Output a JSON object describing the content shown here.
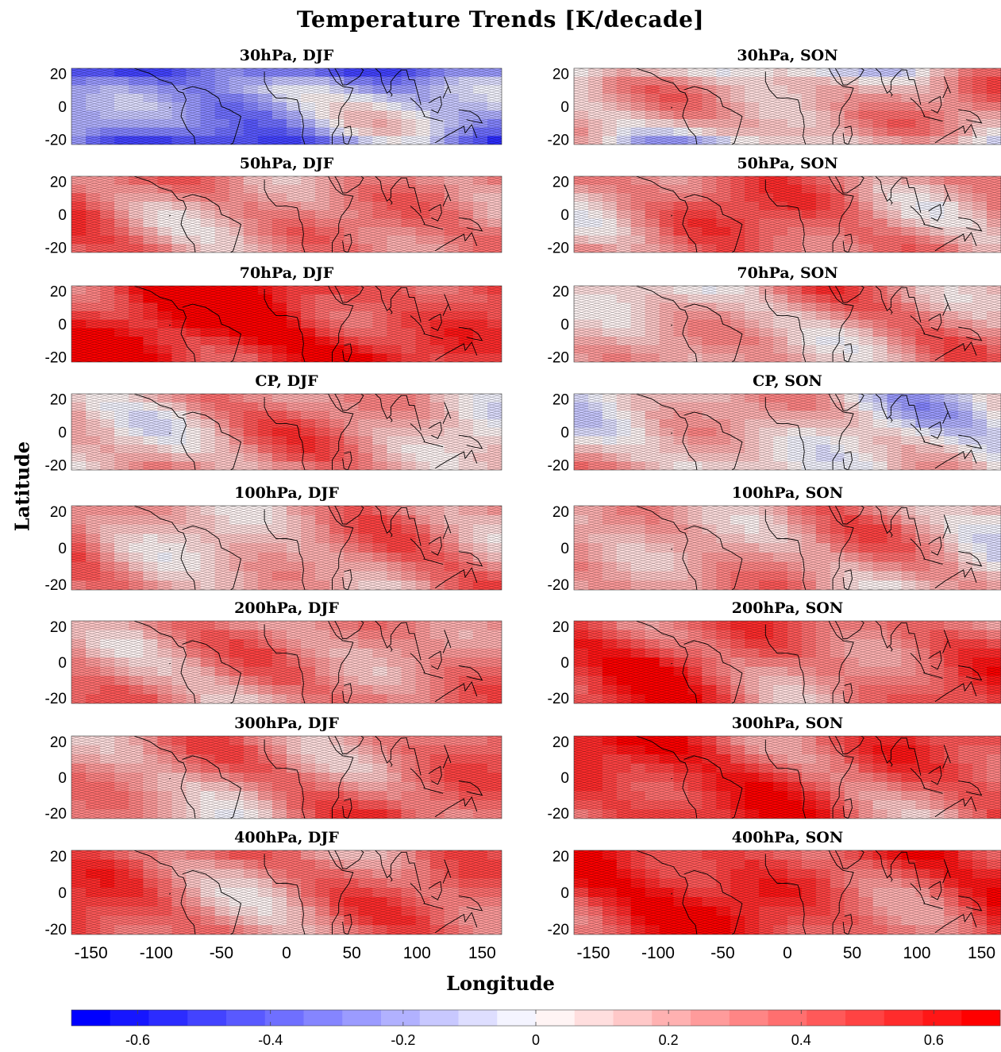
{
  "title": "Temperature Trends [K/decade]",
  "xlabel": "Longitude",
  "ylabel": "Latitude",
  "colors": {
    "neg_max": "#0000ff",
    "pos_max": "#ff0000",
    "zero": "#ffffff",
    "hatch": "#000000",
    "coast": "#000000"
  },
  "chart_data": {
    "type": "heatmap",
    "description_units": "K/decade",
    "xlim": [
      -165,
      165
    ],
    "ylim": [
      -23,
      23
    ],
    "x_ticks": [
      -150,
      -100,
      -50,
      0,
      50,
      100,
      150
    ],
    "y_ticks": [
      20,
      0,
      -20
    ],
    "colorbar": {
      "range": [
        -0.7,
        0.7
      ],
      "levels": 24,
      "ticks": [
        -0.6,
        -0.4,
        -0.2,
        0,
        0.2,
        0.4,
        0.6
      ]
    },
    "panels": [
      {
        "title": "30hPa, DJF",
        "base": -0.15,
        "stripe": "blue"
      },
      {
        "title": "30hPa, SON",
        "base": 0.25,
        "stripe": "red"
      },
      {
        "title": "50hPa, DJF",
        "base": 0.3,
        "stripe": "red"
      },
      {
        "title": "50hPa, SON",
        "base": 0.3,
        "stripe": "red"
      },
      {
        "title": "70hPa, DJF",
        "base": 0.55,
        "stripe": "red"
      },
      {
        "title": "70hPa, SON",
        "base": 0.2,
        "stripe": "red"
      },
      {
        "title": "CP, DJF",
        "base": 0.2,
        "stripe": "red"
      },
      {
        "title": "CP, SON",
        "base": 0.08,
        "stripe": "red"
      },
      {
        "title": "100hPa, DJF",
        "base": 0.25,
        "stripe": "red"
      },
      {
        "title": "100hPa, SON",
        "base": 0.2,
        "stripe": "red"
      },
      {
        "title": "200hPa, DJF",
        "base": 0.3,
        "stripe": "red"
      },
      {
        "title": "200hPa, SON",
        "base": 0.4,
        "stripe": "red"
      },
      {
        "title": "300hPa, DJF",
        "base": 0.3,
        "stripe": "red"
      },
      {
        "title": "300hPa, SON",
        "base": 0.45,
        "stripe": "red"
      },
      {
        "title": "400hPa, DJF",
        "base": 0.35,
        "stripe": "red"
      },
      {
        "title": "400hPa, SON",
        "base": 0.5,
        "stripe": "red"
      }
    ]
  }
}
